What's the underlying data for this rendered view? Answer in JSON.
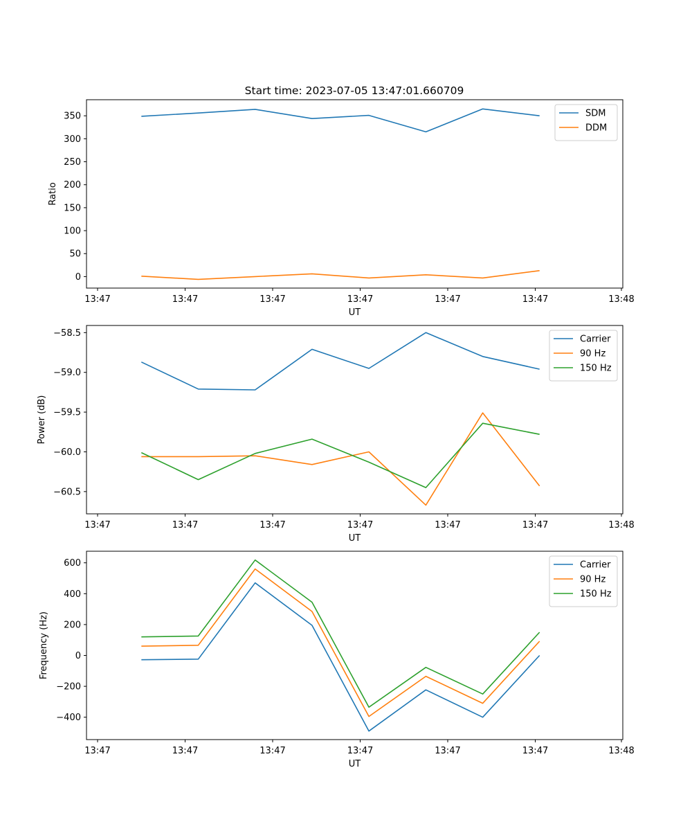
{
  "chart_data": [
    {
      "type": "line",
      "title": "Start time: 2023-07-05 13:47:01.660709",
      "xlabel": "UT",
      "ylabel": "Ratio",
      "x_tick_labels": [
        "13:47",
        "13:47",
        "13:47",
        "13:47",
        "13:47",
        "13:47",
        "13:48"
      ],
      "x_range": [
        0,
        6
      ],
      "x": [
        0.5,
        1.15,
        1.8,
        2.45,
        3.1,
        3.75,
        4.4,
        5.05
      ],
      "yticks": [
        0,
        50,
        100,
        150,
        200,
        250,
        300,
        350
      ],
      "ylim": [
        -25,
        385
      ],
      "legend_position": "top-right",
      "series": [
        {
          "name": "SDM",
          "color": "#1f77b4",
          "values": [
            349,
            356,
            364,
            344,
            351,
            315,
            365,
            350
          ]
        },
        {
          "name": "DDM",
          "color": "#ff7f0e",
          "values": [
            1,
            -6,
            0,
            6,
            -3,
            4,
            -3,
            13
          ]
        }
      ]
    },
    {
      "type": "line",
      "title": "",
      "xlabel": "UT",
      "ylabel": "Power (dB)",
      "x_tick_labels": [
        "13:47",
        "13:47",
        "13:47",
        "13:47",
        "13:47",
        "13:47",
        "13:48"
      ],
      "x_range": [
        0,
        6
      ],
      "x": [
        0.5,
        1.15,
        1.8,
        2.45,
        3.1,
        3.75,
        4.4,
        5.05
      ],
      "yticks": [
        -60.5,
        -60.0,
        -59.5,
        -59.0,
        -58.5
      ],
      "ytick_labels": [
        "−60.5",
        "−60.0",
        "−59.5",
        "−59.0",
        "−58.5"
      ],
      "ylim": [
        -60.78,
        -58.41
      ],
      "legend_position": "top-right",
      "series": [
        {
          "name": "Carrier",
          "color": "#1f77b4",
          "values": [
            -58.87,
            -59.21,
            -59.22,
            -58.71,
            -58.95,
            -58.5,
            -58.8,
            -58.96
          ]
        },
        {
          "name": "90 Hz",
          "color": "#ff7f0e",
          "values": [
            -60.06,
            -60.06,
            -60.05,
            -60.16,
            -60.0,
            -60.67,
            -59.51,
            -60.43
          ]
        },
        {
          "name": "150 Hz",
          "color": "#2ca02c",
          "values": [
            -60.01,
            -60.35,
            -60.02,
            -59.84,
            -60.13,
            -60.45,
            -59.64,
            -59.78
          ]
        }
      ]
    },
    {
      "type": "line",
      "title": "",
      "xlabel": "UT",
      "ylabel": "Frequency (Hz)",
      "x_tick_labels": [
        "13:47",
        "13:47",
        "13:47",
        "13:47",
        "13:47",
        "13:47",
        "13:48"
      ],
      "x_range": [
        0,
        6
      ],
      "x": [
        0.5,
        1.15,
        1.8,
        2.45,
        3.1,
        3.75,
        4.4,
        5.05
      ],
      "yticks": [
        -400,
        -200,
        0,
        200,
        400,
        600
      ],
      "ytick_labels": [
        "−400",
        "−200",
        "0",
        "200",
        "400",
        "600"
      ],
      "ylim": [
        -545,
        675
      ],
      "legend_position": "top-right",
      "series": [
        {
          "name": "Carrier",
          "color": "#1f77b4",
          "values": [
            -28,
            -24,
            470,
            195,
            -490,
            -223,
            -400,
            0
          ]
        },
        {
          "name": "90 Hz",
          "color": "#ff7f0e",
          "values": [
            60,
            66,
            560,
            285,
            -395,
            -135,
            -310,
            92
          ]
        },
        {
          "name": "150 Hz",
          "color": "#2ca02c",
          "values": [
            120,
            126,
            618,
            345,
            -335,
            -77,
            -250,
            150
          ]
        }
      ]
    }
  ]
}
